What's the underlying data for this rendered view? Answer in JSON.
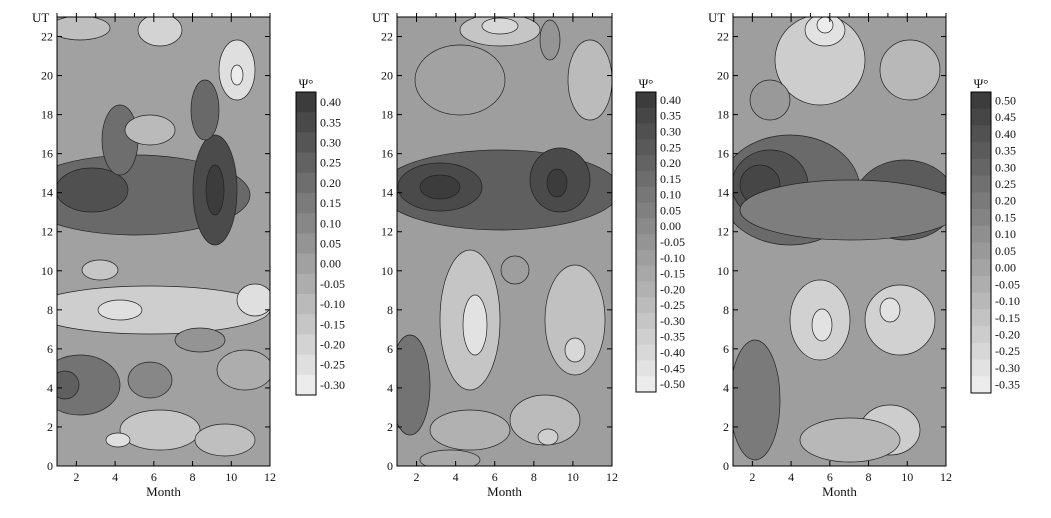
{
  "chart_data": [
    {
      "type": "heatmap",
      "title": "",
      "xlabel": "Month",
      "ylabel": "UT",
      "xlim": [
        1,
        12
      ],
      "ylim": [
        0,
        23
      ],
      "x_ticks": [
        "2",
        "4",
        "6",
        "8",
        "10",
        "12"
      ],
      "y_ticks": [
        "0",
        "2",
        "4",
        "6",
        "8",
        "10",
        "12",
        "14",
        "16",
        "18",
        "20",
        "22"
      ],
      "colorbar": {
        "label": "Ψ°",
        "levels": [
          "0.40",
          "0.35",
          "0.30",
          "0.25",
          "0.20",
          "0.15",
          "0.10",
          "0.05",
          "0.00",
          "-0.05",
          "-0.10",
          "-0.15",
          "-0.20",
          "-0.25",
          "-0.30"
        ],
        "min": -0.3,
        "max": 0.4
      },
      "features": [
        {
          "month": 1.5,
          "ut": 14,
          "value": 0.3
        },
        {
          "month": 4.2,
          "ut": 14,
          "value": 0.3
        },
        {
          "month": 9.1,
          "ut": 14,
          "value": 0.4
        },
        {
          "month": 1.2,
          "ut": 4,
          "value": 0.25
        },
        {
          "month": 10,
          "ut": 20,
          "value": -0.3
        },
        {
          "month": 4.5,
          "ut": 8,
          "value": -0.25
        },
        {
          "month": 11.5,
          "ut": 8,
          "value": -0.25
        },
        {
          "month": 6.3,
          "ut": 2,
          "value": -0.25
        },
        {
          "month": 6,
          "ut": 22.3,
          "value": -0.2
        }
      ]
    },
    {
      "type": "heatmap",
      "title": "",
      "xlabel": "Month",
      "ylabel": "UT",
      "xlim": [
        1,
        12
      ],
      "ylim": [
        0,
        23
      ],
      "x_ticks": [
        "2",
        "4",
        "6",
        "8",
        "10",
        "12"
      ],
      "y_ticks": [
        "0",
        "2",
        "4",
        "6",
        "8",
        "10",
        "12",
        "14",
        "16",
        "18",
        "20",
        "22"
      ],
      "colorbar": {
        "label": "Ψ°",
        "levels": [
          "0.40",
          "0.35",
          "0.30",
          "0.25",
          "0.20",
          "0.15",
          "0.10",
          "0.05",
          "0.00",
          "-0.05",
          "-0.10",
          "-0.15",
          "-0.20",
          "-0.25",
          "-0.30",
          "-0.35",
          "-0.40",
          "-0.45",
          "-0.50"
        ],
        "min": -0.5,
        "max": 0.4
      },
      "features": [
        {
          "month": 2.5,
          "ut": 14.2,
          "value": 0.4
        },
        {
          "month": 9,
          "ut": 14.2,
          "value": 0.4
        },
        {
          "month": 5.2,
          "ut": 7,
          "value": -0.45
        },
        {
          "month": 10,
          "ut": 7,
          "value": -0.35
        },
        {
          "month": 11.5,
          "ut": 20,
          "value": -0.3
        },
        {
          "month": 5.5,
          "ut": 22.5,
          "value": -0.4
        },
        {
          "month": 1.3,
          "ut": 4,
          "value": 0.15
        },
        {
          "month": 8,
          "ut": 2,
          "value": -0.3
        }
      ]
    },
    {
      "type": "heatmap",
      "title": "",
      "xlabel": "Month",
      "ylabel": "UT",
      "xlim": [
        1,
        12
      ],
      "ylim": [
        0,
        23
      ],
      "x_ticks": [
        "2",
        "4",
        "6",
        "8",
        "10",
        "12"
      ],
      "y_ticks": [
        "0",
        "2",
        "4",
        "6",
        "8",
        "10",
        "12",
        "14",
        "16",
        "18",
        "20",
        "22"
      ],
      "colorbar": {
        "label": "Ψ°",
        "levels": [
          "0.50",
          "0.45",
          "0.40",
          "0.35",
          "0.30",
          "0.25",
          "0.20",
          "0.15",
          "0.10",
          "0.05",
          "0.00",
          "-0.05",
          "-0.10",
          "-0.15",
          "-0.20",
          "-0.25",
          "-0.30",
          "-0.35"
        ],
        "min": -0.35,
        "max": 0.5
      },
      "features": [
        {
          "month": 2,
          "ut": 14,
          "value": 0.45
        },
        {
          "month": 10.2,
          "ut": 13.5,
          "value": 0.45
        },
        {
          "month": 6,
          "ut": 22.5,
          "value": -0.35
        },
        {
          "month": 6,
          "ut": 7.5,
          "value": -0.3
        },
        {
          "month": 9,
          "ut": 8,
          "value": -0.3
        },
        {
          "month": 1.5,
          "ut": 3,
          "value": 0.2
        },
        {
          "month": 9,
          "ut": 2,
          "value": -0.25
        }
      ]
    }
  ]
}
